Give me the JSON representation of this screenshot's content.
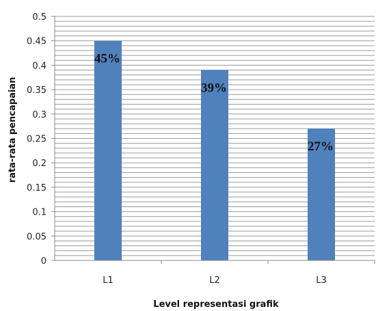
{
  "chart_data": {
    "type": "bar",
    "categories": [
      "L1",
      "L2",
      "L3"
    ],
    "values": [
      0.45,
      0.39,
      0.27
    ],
    "data_labels": [
      "45%",
      "39%",
      "27%"
    ],
    "title": "",
    "xlabel": "Level representasi grafik",
    "ylabel": "rata-rata pencapaian",
    "ylim": [
      0,
      0.5
    ],
    "yticks": [
      "0",
      "0.05",
      "0.1",
      "0.15",
      "0.2",
      "0.25",
      "0.3",
      "0.35",
      "0.4",
      "0.45",
      "0.5"
    ],
    "grid": true,
    "legend": "none",
    "bar_color": "#4f81bd",
    "grid_color": "#9a9a9a"
  }
}
